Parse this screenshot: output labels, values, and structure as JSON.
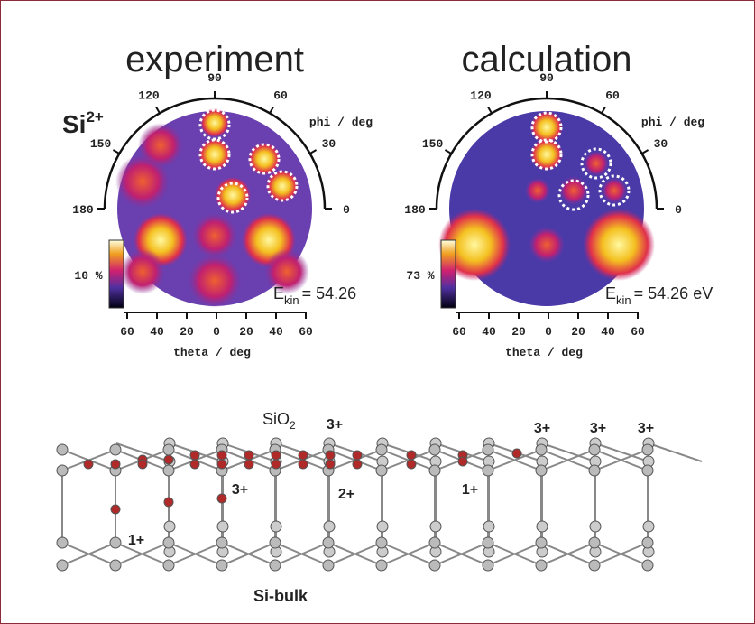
{
  "panels": [
    {
      "title": "experiment",
      "phi_ticks": [
        "180",
        "150",
        "120",
        "90",
        "60",
        "30",
        "0"
      ],
      "phi_label": "phi / deg",
      "scale_label": "10 %",
      "energy": {
        "symbol": "E",
        "subscript": "kin",
        "value": "= 54.26"
      },
      "theta_ticks": [
        "60",
        "40",
        "20",
        "0",
        "20",
        "40",
        "60"
      ],
      "theta_label": "theta / deg"
    },
    {
      "title": "calculation",
      "phi_ticks": [
        "180",
        "150",
        "120",
        "90",
        "60",
        "30",
        "0"
      ],
      "phi_label": "phi / deg",
      "scale_label": "73 %",
      "energy": {
        "symbol": "E",
        "subscript": "kin",
        "value": "= 54.26 eV"
      },
      "theta_ticks": [
        "60",
        "40",
        "20",
        "0",
        "20",
        "40",
        "60"
      ],
      "theta_label": "theta / deg"
    }
  ],
  "ion_label": {
    "symbol": "Si",
    "superscript": "2+"
  },
  "structure": {
    "top_label": {
      "text": "SiO",
      "subscript": "2"
    },
    "bottom_label": "Si-bulk",
    "charge_labels": [
      "3+",
      "3+",
      "3+",
      "3+",
      "3+",
      "2+",
      "1+",
      "1+"
    ]
  }
}
